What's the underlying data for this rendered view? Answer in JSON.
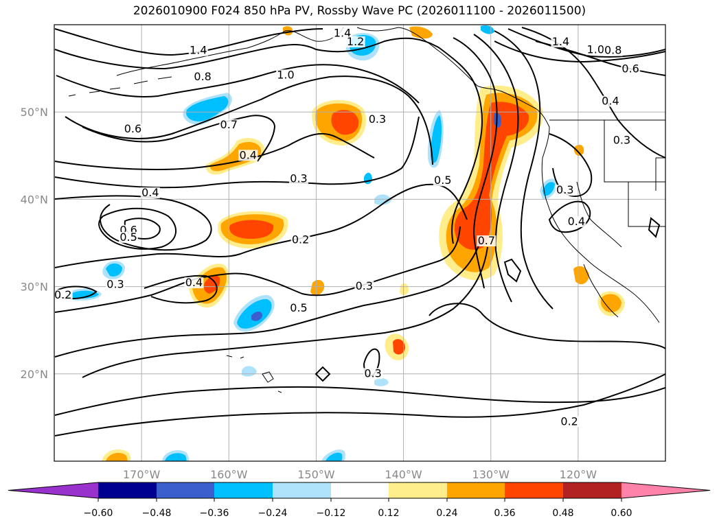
{
  "title": "2026010900 F024 850 hPa PV, Rossby Wave PC (2026011100 - 2026011500)",
  "map": {
    "lon_range": [
      -180,
      -110
    ],
    "lat_range": [
      10,
      60
    ],
    "lon_ticks": [
      {
        "lon": -170,
        "label": "170°W"
      },
      {
        "lon": -160,
        "label": "160°W"
      },
      {
        "lon": -150,
        "label": "150°W"
      },
      {
        "lon": -140,
        "label": "140°W"
      },
      {
        "lon": -130,
        "label": "130°W"
      },
      {
        "lon": -120,
        "label": "120°W"
      }
    ],
    "lat_ticks": [
      {
        "lat": 20,
        "label": "20°N"
      },
      {
        "lat": 30,
        "label": "30°N"
      },
      {
        "lat": 40,
        "label": "40°N"
      },
      {
        "lat": 50,
        "label": "50°N"
      }
    ],
    "grid": true,
    "contour_labels": [
      {
        "text": "1.4",
        "lon": -163.5,
        "lat": 56.8
      },
      {
        "text": "1.4",
        "lon": -147.0,
        "lat": 58.8
      },
      {
        "text": "1.2",
        "lon": -145.5,
        "lat": 57.8
      },
      {
        "text": "1.4",
        "lon": -122.0,
        "lat": 57.8
      },
      {
        "text": "1.0",
        "lon": -118.0,
        "lat": 56.9
      },
      {
        "text": "0.8",
        "lon": -116.0,
        "lat": 56.8
      },
      {
        "text": "0.6",
        "lon": -114.0,
        "lat": 54.7
      },
      {
        "text": "0.4",
        "lon": -116.3,
        "lat": 51.0
      },
      {
        "text": "0.3",
        "lon": -115.0,
        "lat": 46.5
      },
      {
        "text": "0.8",
        "lon": -163.0,
        "lat": 53.8
      },
      {
        "text": "1.0",
        "lon": -153.5,
        "lat": 54.0
      },
      {
        "text": "0.7",
        "lon": -160.0,
        "lat": 48.3
      },
      {
        "text": "0.6",
        "lon": -171.0,
        "lat": 47.8
      },
      {
        "text": "0.4",
        "lon": -157.8,
        "lat": 44.8
      },
      {
        "text": "0.3",
        "lon": -143.0,
        "lat": 48.9
      },
      {
        "text": "0.3",
        "lon": -152.0,
        "lat": 42.1
      },
      {
        "text": "0.5",
        "lon": -135.5,
        "lat": 41.9
      },
      {
        "text": "0.4",
        "lon": -169.0,
        "lat": 40.5
      },
      {
        "text": "0.6",
        "lon": -171.5,
        "lat": 36.2
      },
      {
        "text": "0.5",
        "lon": -171.5,
        "lat": 35.4
      },
      {
        "text": "0.2",
        "lon": -151.8,
        "lat": 35.1
      },
      {
        "text": "0.7",
        "lon": -130.5,
        "lat": 35.0
      },
      {
        "text": "0.3",
        "lon": -121.5,
        "lat": 40.8
      },
      {
        "text": "0.4",
        "lon": -120.2,
        "lat": 37.2
      },
      {
        "text": "0.4",
        "lon": -164.0,
        "lat": 30.2
      },
      {
        "text": "0.3",
        "lon": -173.0,
        "lat": 30.0
      },
      {
        "text": "0.2",
        "lon": -179.0,
        "lat": 28.8
      },
      {
        "text": "0.5",
        "lon": -152.0,
        "lat": 27.3
      },
      {
        "text": "0.3",
        "lon": -144.5,
        "lat": 29.8
      },
      {
        "text": "0.3",
        "lon": -143.5,
        "lat": 19.8
      },
      {
        "text": "0.2",
        "lon": -121.0,
        "lat": 14.3
      }
    ]
  },
  "colorbar": {
    "colors": [
      "#9932cc",
      "#000090",
      "#3a5fcd",
      "#00bfff",
      "#aee2fa",
      "#ffffff",
      "#ffec8b",
      "#ffa500",
      "#ff4500",
      "#b22222",
      "#ff82ab"
    ],
    "tick_labels": [
      "−0.60",
      "−0.48",
      "−0.36",
      "−0.24",
      "−0.12",
      "0.12",
      "0.24",
      "0.36",
      "0.48",
      "0.60"
    ]
  }
}
